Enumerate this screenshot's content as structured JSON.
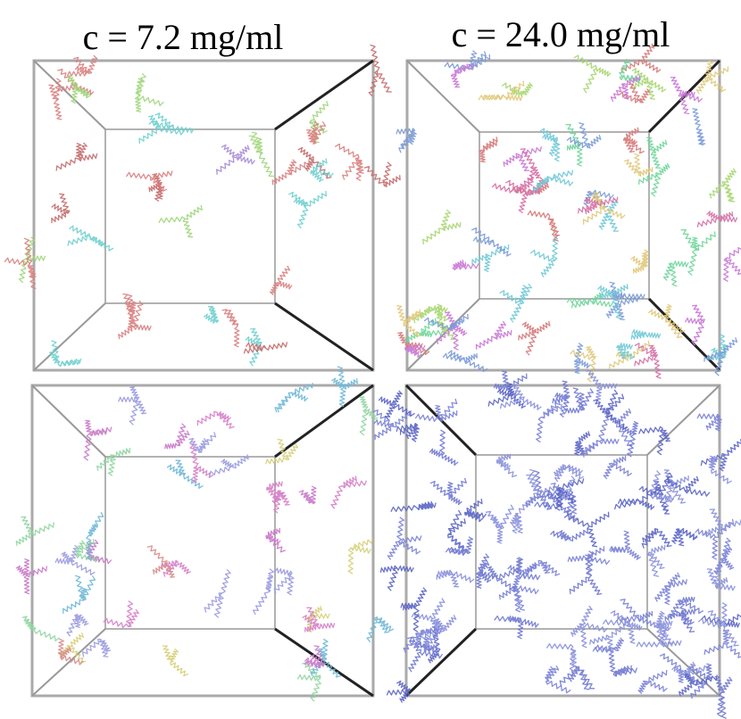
{
  "titles": [
    "c = 7.2 mg/ml",
    "c = 24.0 mg/ml"
  ]
}
